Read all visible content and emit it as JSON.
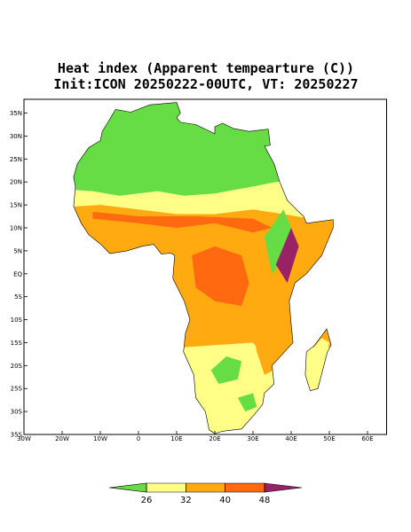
{
  "chart_data": {
    "type": "map",
    "title": "Heat index (Apparent tempearture (C))",
    "subtitle": "Init:ICON 20250222-00UTC, VT: 20250227",
    "xlim": [
      -30,
      65
    ],
    "ylim": [
      -35,
      38
    ],
    "xticks": [
      {
        "value": -30,
        "label": "30W"
      },
      {
        "value": -20,
        "label": "20W"
      },
      {
        "value": -10,
        "label": "10W"
      },
      0,
      {
        "value": 10,
        "label": "10E"
      },
      {
        "value": 20,
        "label": "20E"
      },
      {
        "value": 30,
        "label": "30E"
      },
      {
        "value": 40,
        "label": "40E"
      },
      {
        "value": 50,
        "label": "50E"
      },
      {
        "value": 60,
        "label": "60E"
      }
    ],
    "yticks": [
      {
        "value": -35,
        "label": "35S"
      },
      {
        "value": -30,
        "label": "30S"
      },
      {
        "value": -25,
        "label": "25S"
      },
      {
        "value": -20,
        "label": "20S"
      },
      {
        "value": -15,
        "label": "15S"
      },
      {
        "value": -10,
        "label": "10S"
      },
      {
        "value": -5,
        "label": "5S"
      },
      {
        "value": 0,
        "label": "EQ"
      },
      {
        "value": 5,
        "label": "5N"
      },
      {
        "value": 10,
        "label": "10N"
      },
      {
        "value": 15,
        "label": "15N"
      },
      {
        "value": 20,
        "label": "20N"
      },
      {
        "value": 25,
        "label": "25N"
      },
      {
        "value": 30,
        "label": "30N"
      },
      {
        "value": 35,
        "label": "35N"
      }
    ],
    "colorbar": {
      "ticks": [
        26,
        32,
        40,
        48
      ],
      "colors": [
        "#66dd44",
        "#ffff88",
        "#ffaa11",
        "#ff6a10",
        "#992266"
      ]
    }
  }
}
